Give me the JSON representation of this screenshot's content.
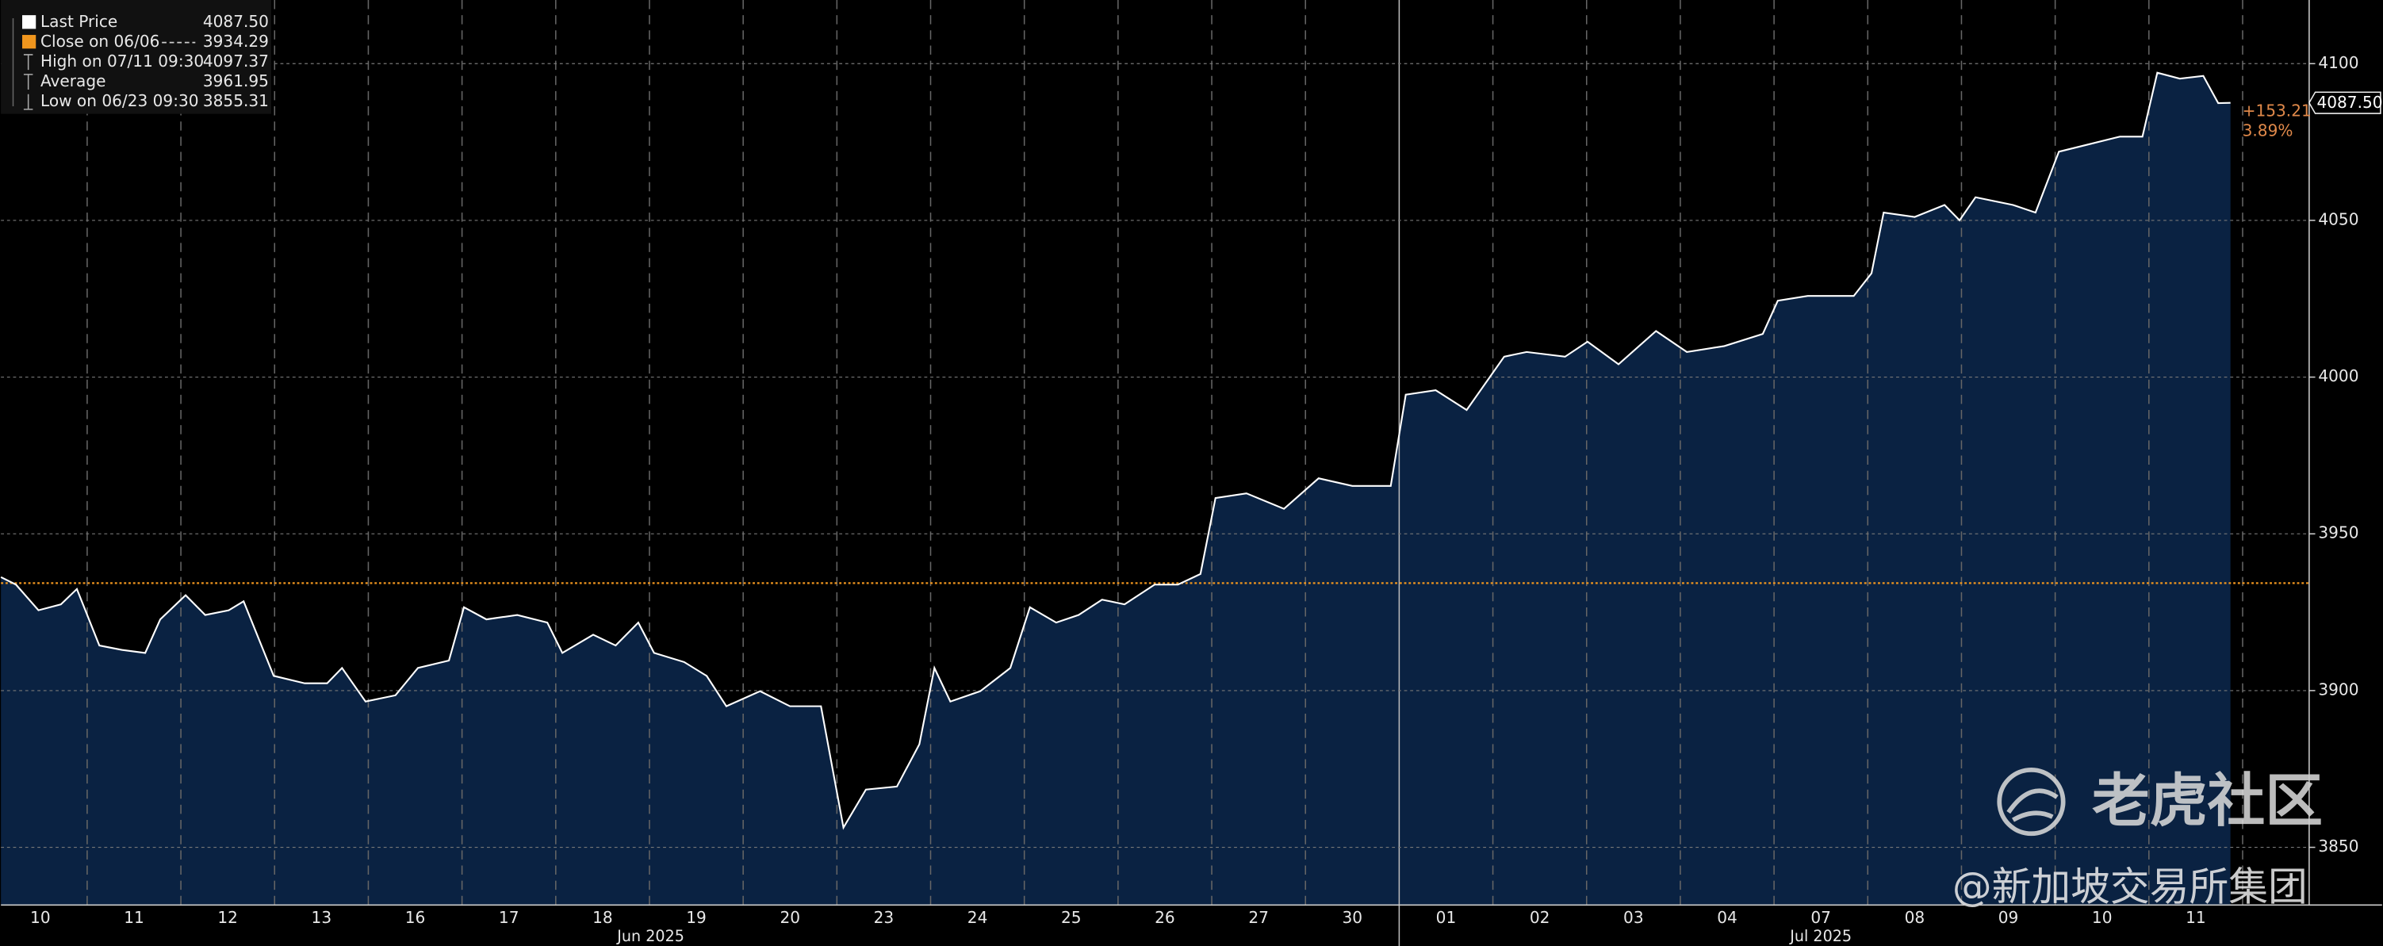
{
  "chart_data": {
    "type": "area",
    "categories": [
      "10",
      "11",
      "12",
      "13",
      "16",
      "17",
      "18",
      "19",
      "20",
      "23",
      "24",
      "25",
      "26",
      "27",
      "30",
      "01",
      "02",
      "03",
      "04",
      "07",
      "08",
      "09",
      "10",
      "11"
    ],
    "month_labels": [
      "Jun 2025",
      "Jul 2025"
    ],
    "xlim": [
      0.08,
      24.71
    ],
    "ylim": [
      3831.6,
      4120.3
    ],
    "yticks": [
      3850,
      3900,
      3950,
      4000,
      4050,
      4100
    ],
    "grid": true,
    "series": [
      {
        "name": "Last Price",
        "color": "#ffffff",
        "fill": "#0a2242",
        "x": [
          0.08,
          0.24,
          0.48,
          0.72,
          0.89,
          1.13,
          1.37,
          1.62,
          1.78,
          2.05,
          2.26,
          2.51,
          2.67,
          2.99,
          3.32,
          3.56,
          3.72,
          3.97,
          4.29,
          4.53,
          4.86,
          5.02,
          5.26,
          5.59,
          5.91,
          6.07,
          6.4,
          6.64,
          6.88,
          7.05,
          7.37,
          7.61,
          7.82,
          8.18,
          8.5,
          8.83,
          9.07,
          9.31,
          9.64,
          9.88,
          10.04,
          10.21,
          10.53,
          10.85,
          11.06,
          11.34,
          11.58,
          11.83,
          12.07,
          12.39,
          12.64,
          12.88,
          13.04,
          13.37,
          13.77,
          14.14,
          14.5,
          14.91,
          15.07,
          15.39,
          15.72,
          16.12,
          16.36,
          16.77,
          17.01,
          17.34,
          17.74,
          18.07,
          18.47,
          18.88,
          19.04,
          19.36,
          19.85,
          20.04,
          20.17,
          20.5,
          20.82,
          20.98,
          21.15,
          21.55,
          21.79,
          22.04,
          22.36,
          22.69,
          22.93,
          23.09,
          23.33,
          23.58,
          23.74,
          23.87
        ],
        "values": [
          3936.2,
          3933.8,
          3925.6,
          3927.5,
          3932.4,
          3914.4,
          3913,
          3912,
          3922.7,
          3930.4,
          3924.1,
          3925.6,
          3928.5,
          3904.7,
          3902.3,
          3902.3,
          3907.2,
          3896.5,
          3898.5,
          3907.2,
          3909.6,
          3926.6,
          3922.7,
          3924.1,
          3921.7,
          3912,
          3917.8,
          3914.4,
          3921.7,
          3912,
          3909.1,
          3904.7,
          3895,
          3899.8,
          3895,
          3895,
          3856.3,
          3868.4,
          3869.4,
          3882.9,
          3907.2,
          3896.5,
          3899.8,
          3907.2,
          3926.6,
          3921.7,
          3924.1,
          3929,
          3927.5,
          3933.8,
          3933.8,
          3937.2,
          3961.4,
          3962.9,
          3958,
          3967.7,
          3965.3,
          3965.3,
          3994.4,
          3995.8,
          3989.5,
          4006.5,
          4008,
          4006.5,
          4011.3,
          4004.1,
          4014.7,
          4008,
          4009.9,
          4013.8,
          4024.4,
          4025.9,
          4025.9,
          4033.1,
          4052.5,
          4051.1,
          4054.9,
          4050,
          4057.4,
          4054.9,
          4052.5,
          4071.9,
          4074.3,
          4076.7,
          4076.7,
          4097.1,
          4095.2,
          4096.1,
          4087.4,
          4087.5
        ]
      }
    ],
    "legend": [
      {
        "name": "Last Price",
        "value": 4087.5,
        "value_label": "4087.50",
        "color": "#ffffff"
      },
      {
        "name": "Close on 06/06",
        "value": 3934.29,
        "value_label": "3934.29",
        "color": "#f0961e"
      },
      {
        "name": "High on 07/11 09:30",
        "value": 4097.37,
        "value_label": "4097.37"
      },
      {
        "name": "Average",
        "value": 3961.95,
        "value_label": "3961.95"
      },
      {
        "name": "Low on 06/23 09:30",
        "value": 3855.31,
        "value_label": "3855.31"
      }
    ],
    "last_tag": {
      "value": 4087.5,
      "label": "4087.50"
    },
    "change": {
      "value": 153.21,
      "label": "+153.21",
      "color": "#e0894a"
    },
    "change_pct": {
      "value": 3.89,
      "label": "3.89%"
    }
  },
  "watermark": {
    "brand": "老虎社区",
    "source": "@新加坡交易所集团"
  }
}
